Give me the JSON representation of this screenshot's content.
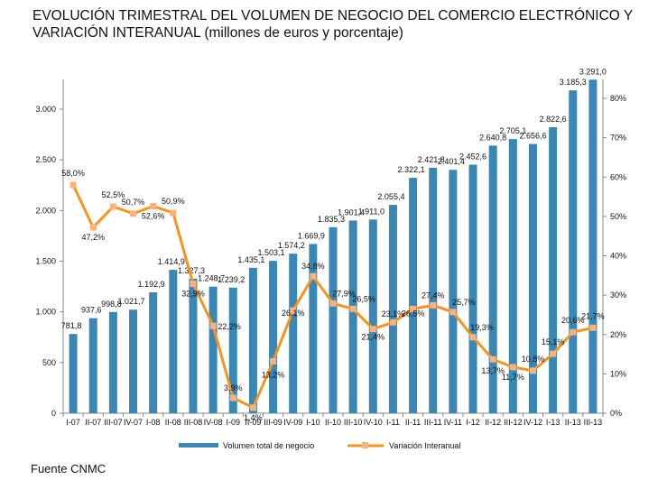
{
  "title_line1": "EVOLUCIÓN TRIMESTRAL DEL VOLUMEN DE NEGOCIO DEL COMERCIO ELECTRÓNICO Y",
  "title_line2_caps": "VARIACIÓN INTERANUAL",
  "title_line2_rest": " (millones de euros y porcentaje)",
  "source": "Fuente CNMC",
  "chart_data": {
    "type": "bar+line",
    "categories": [
      "I-07",
      "II-07",
      "III-07",
      "IV-07",
      "I-08",
      "II-08",
      "III-08",
      "IV-08",
      "I-09",
      "II-09",
      "III-09",
      "IV-09",
      "I-10",
      "II-10",
      "III-10",
      "IV-10",
      "I-11",
      "II-11",
      "III-11",
      "IV-11",
      "I-12",
      "II-12",
      "III-12",
      "IV-12",
      "I-13",
      "II-13",
      "III-13"
    ],
    "series": [
      {
        "name": "Volumen total de negocio",
        "type": "bar",
        "axis": "left",
        "color": "#3a87b4",
        "values": [
          781.8,
          937.6,
          998.8,
          1021.7,
          1192.9,
          1414.9,
          1327.3,
          1248.7,
          1239.2,
          1435.1,
          1503.1,
          1574.2,
          1669.9,
          1835.3,
          1901.4,
          1911.0,
          2055.4,
          2322.1,
          2421.8,
          2401.4,
          2452.6,
          2640.8,
          2705.1,
          2656.6,
          2822.6,
          3185.3,
          3291.0
        ],
        "labels": [
          "781,8",
          "937,6",
          "998,8",
          "1.021,7",
          "1.192,9",
          "1.414,9",
          "1.327,3",
          "1.248,7",
          "1.239,2",
          "1.435,1",
          "1.503,1",
          "1.574,2",
          "1.669,9",
          "1.835,3",
          "1.901,4",
          "1.911,0",
          "2.055,4",
          "2.322,1",
          "2.421,8",
          "2.401,4",
          "2.452,6",
          "2.640,8",
          "2.705,1",
          "2.656,6",
          "2.822,6",
          "3.185,3",
          "3.291,0"
        ]
      },
      {
        "name": "Variación Interanual",
        "type": "line",
        "axis": "right",
        "color": "#f7941d",
        "marker_color": "#f9b27d",
        "values": [
          58.0,
          47.2,
          52.5,
          50.7,
          52.6,
          50.9,
          32.9,
          22.2,
          3.9,
          1.4,
          13.2,
          26.1,
          34.8,
          27.9,
          26.5,
          21.4,
          23.1,
          26.5,
          27.4,
          25.7,
          19.3,
          13.7,
          11.7,
          10.8,
          15.1,
          20.6,
          21.7
        ],
        "labels": [
          "58,0%",
          "47,2%",
          "52,5%",
          "50,7%",
          "52,6%",
          "50,9%",
          "32,9%",
          "22,2%",
          "3,9%",
          "1,4%",
          "13,2%",
          "26,1%",
          "34,8%",
          "27,9%",
          "26,5%",
          "21,4%",
          "23,1%",
          "26,5%",
          "27,4%",
          "25,7%",
          "19,3%",
          "13,7%",
          "11,7%",
          "10,8%",
          "15,1%",
          "20,6%",
          "21,7%"
        ]
      }
    ],
    "y_left": {
      "range": [
        0,
        3300
      ],
      "ticks": [
        "0",
        "500",
        "1.000",
        "1.500",
        "2.000",
        "2.500",
        "3.000"
      ],
      "tick_values": [
        0,
        500,
        1000,
        1500,
        2000,
        2500,
        3000
      ]
    },
    "y_right": {
      "range": [
        0,
        85
      ],
      "ticks": [
        "0%",
        "10%",
        "20%",
        "30%",
        "40%",
        "50%",
        "60%",
        "70%",
        "80%"
      ],
      "tick_values": [
        0,
        10,
        20,
        30,
        40,
        50,
        60,
        70,
        80
      ]
    },
    "grid": false,
    "legend": "bottom"
  }
}
